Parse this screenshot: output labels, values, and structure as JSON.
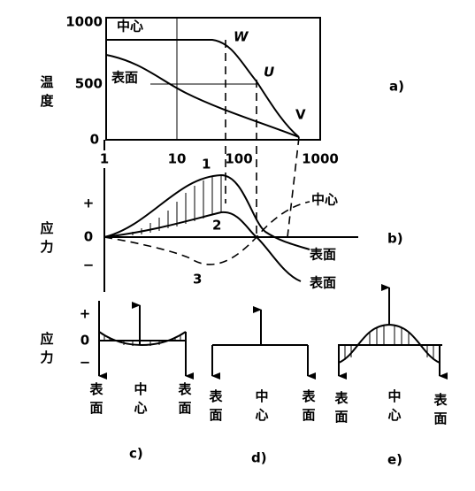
{
  "panel_a": {
    "y_label": "温度",
    "y_ticks": [
      "1000",
      "500",
      "0"
    ],
    "x_ticks": [
      "1",
      "10",
      "100",
      "1000"
    ],
    "center_label": "中心",
    "surface_label": "表面",
    "curve_labels": [
      "W",
      "U",
      "V"
    ],
    "caption": "a)"
  },
  "panel_b": {
    "y_label": "应力",
    "signs": [
      "+",
      "0",
      "−"
    ],
    "curve_numbers": [
      "1",
      "2",
      "3"
    ],
    "center_label": "中心",
    "surface_labels": [
      "表面",
      "表面"
    ],
    "caption": "b)"
  },
  "panel_c": {
    "y_label": "应力",
    "signs": [
      "+",
      "0",
      "−"
    ],
    "positions": [
      "表面",
      "中心",
      "表面"
    ],
    "caption": "c)"
  },
  "panel_d": {
    "positions": [
      "表面",
      "中心",
      "表面"
    ],
    "caption": "d)"
  },
  "panel_e": {
    "positions": [
      "表面",
      "中心",
      "表面"
    ],
    "caption": "e)"
  }
}
